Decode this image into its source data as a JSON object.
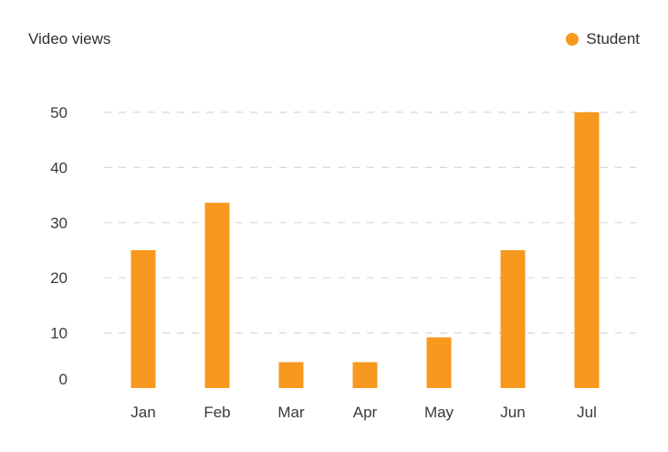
{
  "chart": {
    "title": "Video views"
  },
  "legend": {
    "label": "Student"
  },
  "colors": {
    "series": "#f7991f",
    "grid": "#d8d8d8"
  },
  "chart_data": {
    "type": "bar",
    "title": "Video views",
    "xlabel": "",
    "ylabel": "",
    "categories": [
      "Jan",
      "Feb",
      "Mar",
      "Apr",
      "May",
      "Jun",
      "Jul"
    ],
    "series": [
      {
        "name": "Student",
        "values": [
          25,
          33.6,
          4.7,
          4.7,
          9.2,
          25,
          50
        ]
      }
    ],
    "ylim": [
      0,
      50
    ],
    "yticks": [
      0,
      10,
      20,
      30,
      40,
      50
    ],
    "grid": true,
    "legend_position": "top-right"
  }
}
